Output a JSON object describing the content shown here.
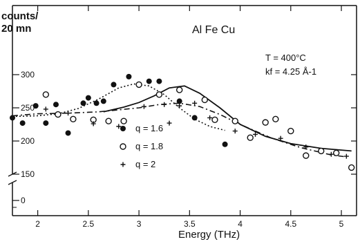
{
  "chart_data": {
    "type": "scatter",
    "title": "Al Fe Cu",
    "ylabel_line1": "counts/",
    "ylabel_line2": "20 mn",
    "xlabel": "Energy (THz)",
    "conditions": {
      "temperature": "T = 400°C",
      "kf": "kf = 4.25 Å-1"
    },
    "xlim": [
      1.75,
      5.15
    ],
    "ylim": [
      100,
      325
    ],
    "x_ticks": [
      2,
      2.5,
      3,
      3.5,
      4,
      4.5,
      5
    ],
    "x_tick_labels": [
      "2",
      "2.5",
      "3",
      "3.5",
      "4",
      "4.5",
      "5"
    ],
    "y_ticks": [
      150,
      200,
      250,
      300
    ],
    "y_tick_labels": [
      "150",
      "200",
      "250",
      "300"
    ],
    "y_zero_label": "0",
    "series": [
      {
        "name": "q = 1.6",
        "marker": "filled-circle",
        "points": [
          [
            1.75,
            235
          ],
          [
            1.85,
            227
          ],
          [
            1.98,
            253
          ],
          [
            2.08,
            227
          ],
          [
            2.18,
            255
          ],
          [
            2.3,
            212
          ],
          [
            2.45,
            257
          ],
          [
            2.5,
            265
          ],
          [
            2.58,
            257
          ],
          [
            2.65,
            260
          ],
          [
            2.75,
            285
          ],
          [
            2.9,
            297
          ],
          [
            3.1,
            290
          ],
          [
            3.2,
            290
          ],
          [
            3.4,
            260
          ],
          [
            3.55,
            235
          ],
          [
            3.85,
            195
          ]
        ],
        "fit": [
          [
            1.75,
            237
          ],
          [
            2.0,
            238
          ],
          [
            2.2,
            241
          ],
          [
            2.4,
            249
          ],
          [
            2.6,
            263
          ],
          [
            2.8,
            280
          ],
          [
            2.95,
            286
          ],
          [
            3.1,
            283
          ],
          [
            3.25,
            270
          ],
          [
            3.4,
            250
          ],
          [
            3.55,
            233
          ],
          [
            3.7,
            222
          ],
          [
            3.85,
            216
          ]
        ]
      },
      {
        "name": "q = 1.8",
        "marker": "open-circle",
        "points": [
          [
            2.08,
            270
          ],
          [
            2.2,
            240
          ],
          [
            2.35,
            233
          ],
          [
            2.55,
            232
          ],
          [
            2.7,
            230
          ],
          [
            2.85,
            230
          ],
          [
            3.0,
            285
          ],
          [
            3.2,
            270
          ],
          [
            3.4,
            277
          ],
          [
            3.65,
            262
          ],
          [
            3.75,
            232
          ],
          [
            3.95,
            230
          ],
          [
            4.1,
            205
          ],
          [
            4.25,
            228
          ],
          [
            4.35,
            233
          ],
          [
            4.5,
            215
          ],
          [
            4.65,
            178
          ],
          [
            4.8,
            185
          ],
          [
            4.95,
            182
          ],
          [
            5.1,
            160
          ]
        ],
        "fit": [
          [
            2.65,
            244
          ],
          [
            2.85,
            251
          ],
          [
            3.0,
            258
          ],
          [
            3.15,
            268
          ],
          [
            3.3,
            280
          ],
          [
            3.45,
            283
          ],
          [
            3.6,
            272
          ],
          [
            3.8,
            250
          ],
          [
            4.0,
            225
          ],
          [
            4.25,
            207
          ],
          [
            4.5,
            196
          ],
          [
            4.8,
            189
          ],
          [
            5.1,
            185
          ]
        ]
      },
      {
        "name": "q = 2",
        "marker": "plus",
        "points": [
          [
            2.08,
            248
          ],
          [
            2.3,
            242
          ],
          [
            2.55,
            226
          ],
          [
            2.8,
            222
          ],
          [
            3.05,
            252
          ],
          [
            3.25,
            255
          ],
          [
            3.3,
            227
          ],
          [
            3.4,
            253
          ],
          [
            3.55,
            257
          ],
          [
            3.7,
            235
          ],
          [
            3.95,
            215
          ],
          [
            4.15,
            210
          ],
          [
            4.4,
            204
          ],
          [
            4.65,
            191
          ],
          [
            4.9,
            180
          ],
          [
            5.05,
            177
          ]
        ],
        "fit": [
          [
            1.75,
            238
          ],
          [
            2.0,
            241
          ],
          [
            2.3,
            242
          ],
          [
            2.6,
            244
          ],
          [
            2.8,
            247
          ],
          [
            3.0,
            250
          ],
          [
            3.2,
            255
          ],
          [
            3.4,
            257
          ],
          [
            3.6,
            252
          ],
          [
            3.8,
            240
          ],
          [
            4.0,
            225
          ],
          [
            4.3,
            205
          ],
          [
            4.6,
            190
          ],
          [
            4.9,
            179
          ],
          [
            5.05,
            176
          ]
        ]
      }
    ]
  }
}
